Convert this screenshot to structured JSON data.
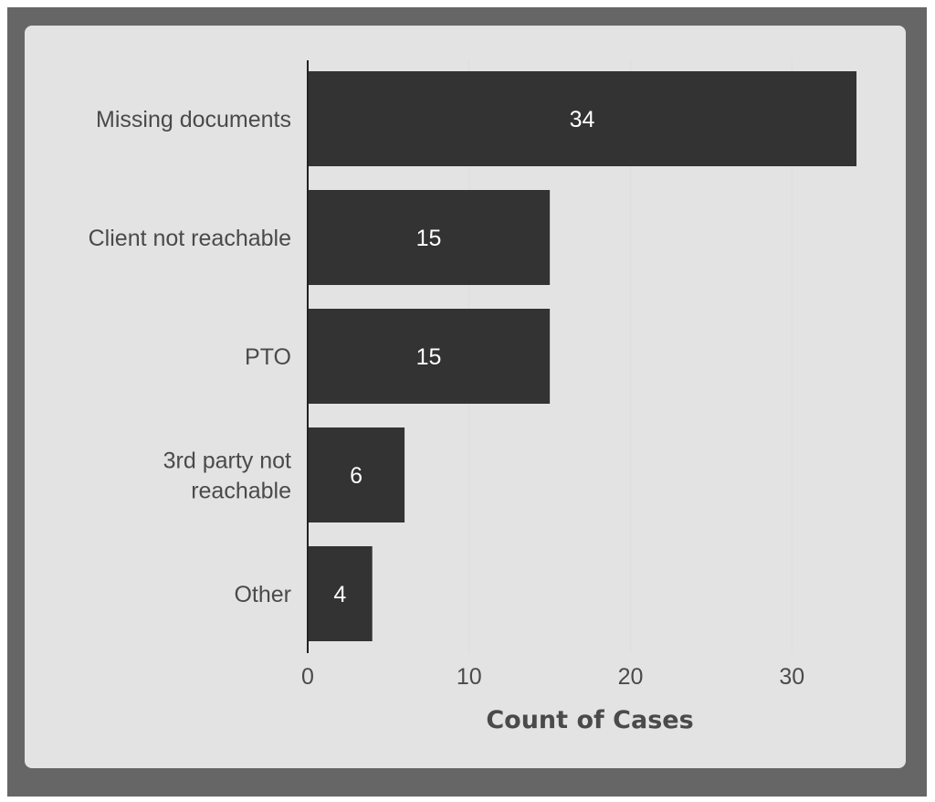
{
  "chart_data": {
    "type": "bar",
    "orientation": "horizontal",
    "categories": [
      "Missing documents",
      "Client not reachable",
      "PTO",
      "3rd party not reachable",
      "Other"
    ],
    "category_lines": [
      [
        "Missing documents"
      ],
      [
        "Client not reachable"
      ],
      [
        "PTO"
      ],
      [
        "3rd party not",
        "reachable"
      ],
      [
        "Other"
      ]
    ],
    "values": [
      34,
      15,
      15,
      6,
      4
    ],
    "data_labels": [
      "34",
      "15",
      "15",
      "6",
      "4"
    ],
    "title": "",
    "xlabel": "Count of Cases",
    "ylabel": "",
    "xlim": [
      0,
      34
    ],
    "xticks": [
      0,
      10,
      20,
      30
    ],
    "xtick_labels": [
      "0",
      "10",
      "20",
      "30"
    ],
    "grid": "vertical, faint",
    "legend": "none",
    "colors": {
      "bar": "#333333",
      "background": "#e3e3e3",
      "frame": "#666666",
      "text": "#4a4a4a",
      "bar_label": "#ffffff",
      "grid": "#dddddd"
    }
  }
}
